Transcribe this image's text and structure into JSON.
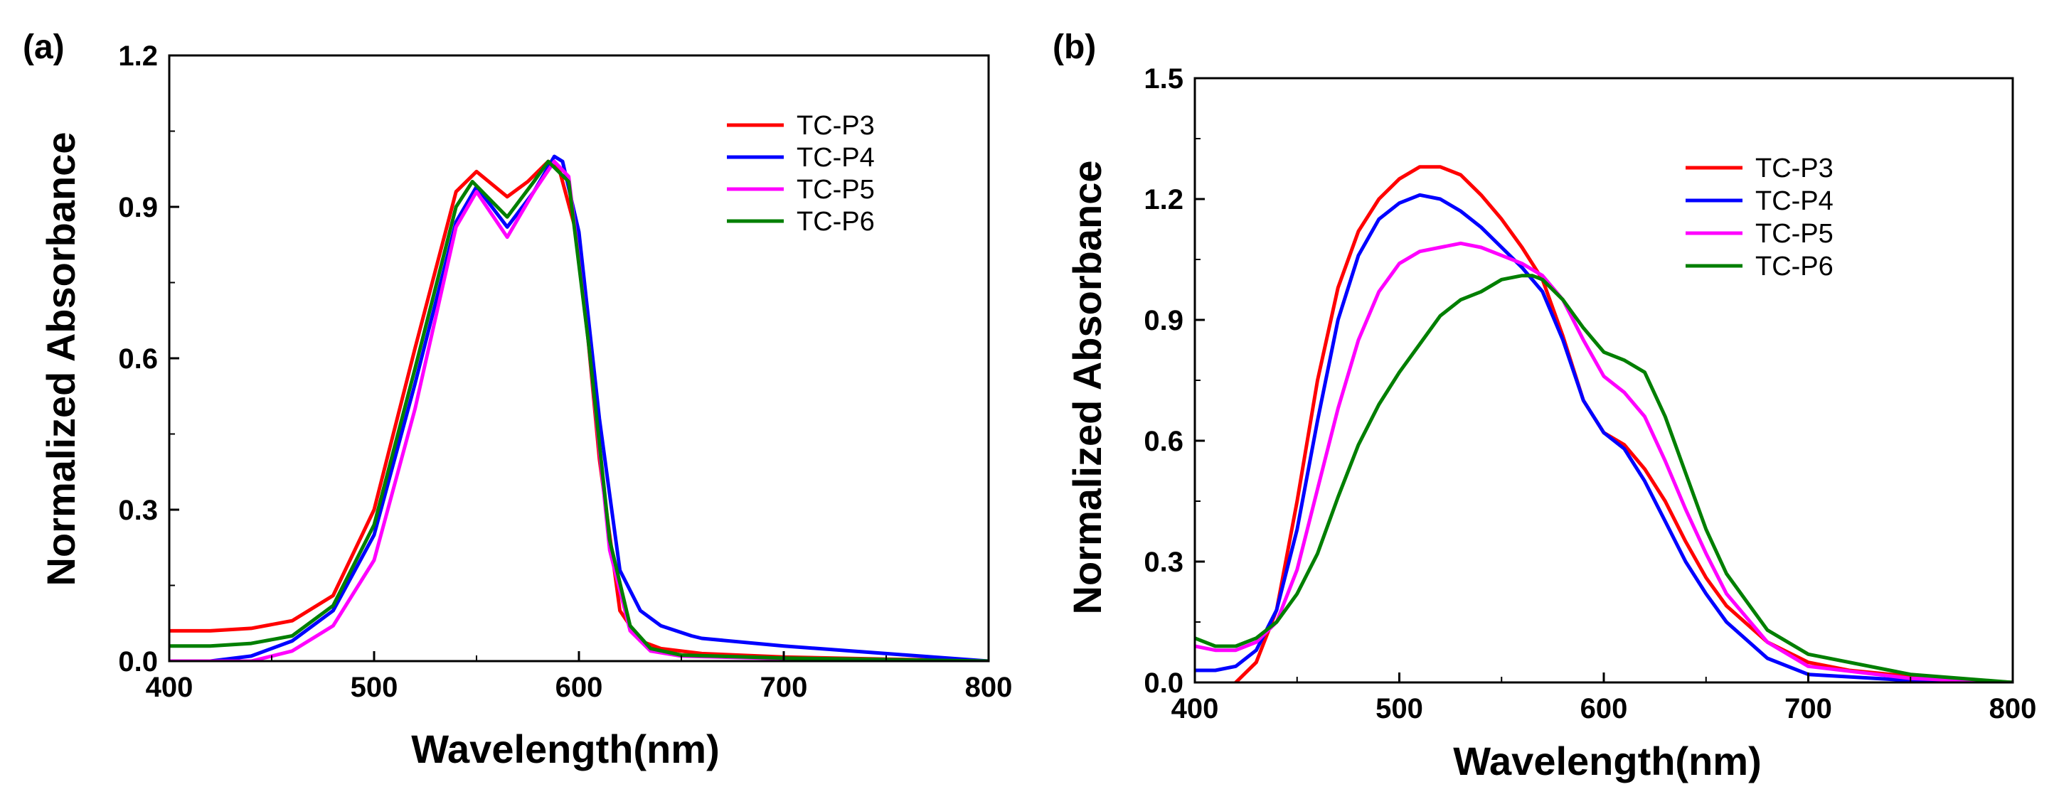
{
  "chart_data": [
    {
      "panel_label": "(a)",
      "type": "line",
      "xlabel": "Wavelength(nm)",
      "ylabel": "Normalized Absorbance",
      "xlim": [
        400,
        800
      ],
      "ylim": [
        0.0,
        1.2
      ],
      "xticks": [
        400,
        500,
        600,
        700,
        800
      ],
      "yticks": [
        0.0,
        0.3,
        0.6,
        0.9,
        1.2
      ],
      "xtick_labels": [
        "400",
        "500",
        "600",
        "700",
        "800"
      ],
      "ytick_labels": [
        "0.0",
        "0.3",
        "0.6",
        "0.9",
        "1.2"
      ],
      "grid": false,
      "legend_position": "top-right",
      "series": [
        {
          "name": "TC-P3",
          "color": "#ff0000",
          "x": [
            400,
            420,
            440,
            460,
            480,
            500,
            520,
            540,
            550,
            565,
            575,
            585,
            590,
            600,
            610,
            620,
            630,
            640,
            660,
            700,
            750,
            800
          ],
          "y": [
            0.06,
            0.06,
            0.065,
            0.08,
            0.13,
            0.3,
            0.62,
            0.93,
            0.97,
            0.92,
            0.95,
            0.99,
            0.98,
            0.83,
            0.4,
            0.1,
            0.04,
            0.025,
            0.015,
            0.008,
            0.004,
            0.0
          ]
        },
        {
          "name": "TC-P4",
          "color": "#0000ff",
          "x": [
            400,
            420,
            440,
            460,
            480,
            500,
            520,
            540,
            550,
            565,
            578,
            588,
            592,
            600,
            610,
            620,
            630,
            640,
            655,
            660,
            700,
            750,
            800
          ],
          "y": [
            0.0,
            0.0,
            0.01,
            0.04,
            0.1,
            0.25,
            0.55,
            0.87,
            0.94,
            0.86,
            0.93,
            1.0,
            0.99,
            0.85,
            0.48,
            0.18,
            0.1,
            0.07,
            0.05,
            0.045,
            0.03,
            0.015,
            0.0
          ]
        },
        {
          "name": "TC-P5",
          "color": "#ff00ff",
          "x": [
            400,
            420,
            440,
            460,
            480,
            500,
            520,
            540,
            550,
            565,
            578,
            588,
            595,
            605,
            615,
            625,
            635,
            650,
            700,
            750,
            800
          ],
          "y": [
            0.0,
            0.0,
            0.0,
            0.02,
            0.07,
            0.2,
            0.5,
            0.86,
            0.93,
            0.84,
            0.93,
            0.99,
            0.96,
            0.62,
            0.22,
            0.06,
            0.02,
            0.01,
            0.005,
            0.002,
            0.0
          ]
        },
        {
          "name": "TC-P6",
          "color": "#007f00",
          "x": [
            400,
            420,
            440,
            460,
            480,
            500,
            520,
            540,
            548,
            565,
            578,
            585,
            595,
            605,
            615,
            625,
            635,
            650,
            700,
            750,
            800
          ],
          "y": [
            0.03,
            0.03,
            0.035,
            0.05,
            0.11,
            0.27,
            0.58,
            0.9,
            0.95,
            0.88,
            0.95,
            0.99,
            0.95,
            0.62,
            0.24,
            0.07,
            0.025,
            0.012,
            0.006,
            0.003,
            0.0
          ]
        }
      ]
    },
    {
      "panel_label": "(b)",
      "type": "line",
      "xlabel": "Wavelength(nm)",
      "ylabel": "Normalized Absorbance",
      "xlim": [
        400,
        800
      ],
      "ylim": [
        0.0,
        1.5
      ],
      "xticks": [
        400,
        500,
        600,
        700,
        800
      ],
      "yticks": [
        0.0,
        0.3,
        0.6,
        0.9,
        1.2,
        1.5
      ],
      "xtick_labels": [
        "400",
        "500",
        "600",
        "700",
        "800"
      ],
      "ytick_labels": [
        "0.0",
        "0.3",
        "0.6",
        "0.9",
        "1.2",
        "1.5"
      ],
      "grid": false,
      "legend_position": "top-right",
      "series": [
        {
          "name": "TC-P3",
          "color": "#ff0000",
          "x": [
            420,
            430,
            440,
            450,
            460,
            470,
            480,
            490,
            500,
            510,
            520,
            530,
            540,
            550,
            560,
            570,
            580,
            590,
            600,
            610,
            620,
            630,
            640,
            650,
            660,
            680,
            700,
            720,
            750,
            800
          ],
          "y": [
            0.0,
            0.05,
            0.18,
            0.45,
            0.75,
            0.98,
            1.12,
            1.2,
            1.25,
            1.28,
            1.28,
            1.26,
            1.21,
            1.15,
            1.08,
            1.0,
            0.86,
            0.7,
            0.62,
            0.59,
            0.53,
            0.45,
            0.35,
            0.26,
            0.19,
            0.1,
            0.05,
            0.03,
            0.015,
            0.0
          ]
        },
        {
          "name": "TC-P4",
          "color": "#0000ff",
          "x": [
            400,
            410,
            420,
            430,
            440,
            450,
            460,
            470,
            480,
            490,
            500,
            510,
            520,
            530,
            540,
            550,
            560,
            570,
            580,
            590,
            600,
            610,
            620,
            630,
            640,
            650,
            660,
            680,
            700,
            750,
            800
          ],
          "y": [
            0.03,
            0.03,
            0.04,
            0.08,
            0.18,
            0.38,
            0.65,
            0.9,
            1.06,
            1.15,
            1.19,
            1.21,
            1.2,
            1.17,
            1.13,
            1.08,
            1.03,
            0.97,
            0.85,
            0.7,
            0.62,
            0.58,
            0.5,
            0.4,
            0.3,
            0.22,
            0.15,
            0.06,
            0.02,
            0.005,
            0.0
          ]
        },
        {
          "name": "TC-P5",
          "color": "#ff00ff",
          "x": [
            400,
            410,
            420,
            430,
            440,
            450,
            460,
            470,
            480,
            490,
            500,
            510,
            520,
            530,
            540,
            550,
            560,
            570,
            580,
            590,
            600,
            610,
            620,
            630,
            640,
            650,
            660,
            680,
            700,
            750,
            800
          ],
          "y": [
            0.09,
            0.08,
            0.08,
            0.1,
            0.15,
            0.28,
            0.48,
            0.68,
            0.85,
            0.97,
            1.04,
            1.07,
            1.08,
            1.09,
            1.08,
            1.06,
            1.04,
            1.01,
            0.95,
            0.85,
            0.76,
            0.72,
            0.66,
            0.55,
            0.43,
            0.32,
            0.22,
            0.1,
            0.04,
            0.01,
            0.0
          ]
        },
        {
          "name": "TC-P6",
          "color": "#007f00",
          "x": [
            400,
            410,
            420,
            430,
            440,
            450,
            460,
            470,
            480,
            490,
            500,
            510,
            520,
            530,
            540,
            550,
            560,
            565,
            570,
            580,
            590,
            600,
            610,
            620,
            630,
            640,
            650,
            660,
            680,
            700,
            750,
            800
          ],
          "y": [
            0.11,
            0.09,
            0.09,
            0.11,
            0.15,
            0.22,
            0.32,
            0.46,
            0.59,
            0.69,
            0.77,
            0.84,
            0.91,
            0.95,
            0.97,
            1.0,
            1.01,
            1.01,
            1.0,
            0.95,
            0.88,
            0.82,
            0.8,
            0.77,
            0.66,
            0.52,
            0.38,
            0.27,
            0.13,
            0.07,
            0.02,
            0.0
          ]
        }
      ]
    }
  ]
}
